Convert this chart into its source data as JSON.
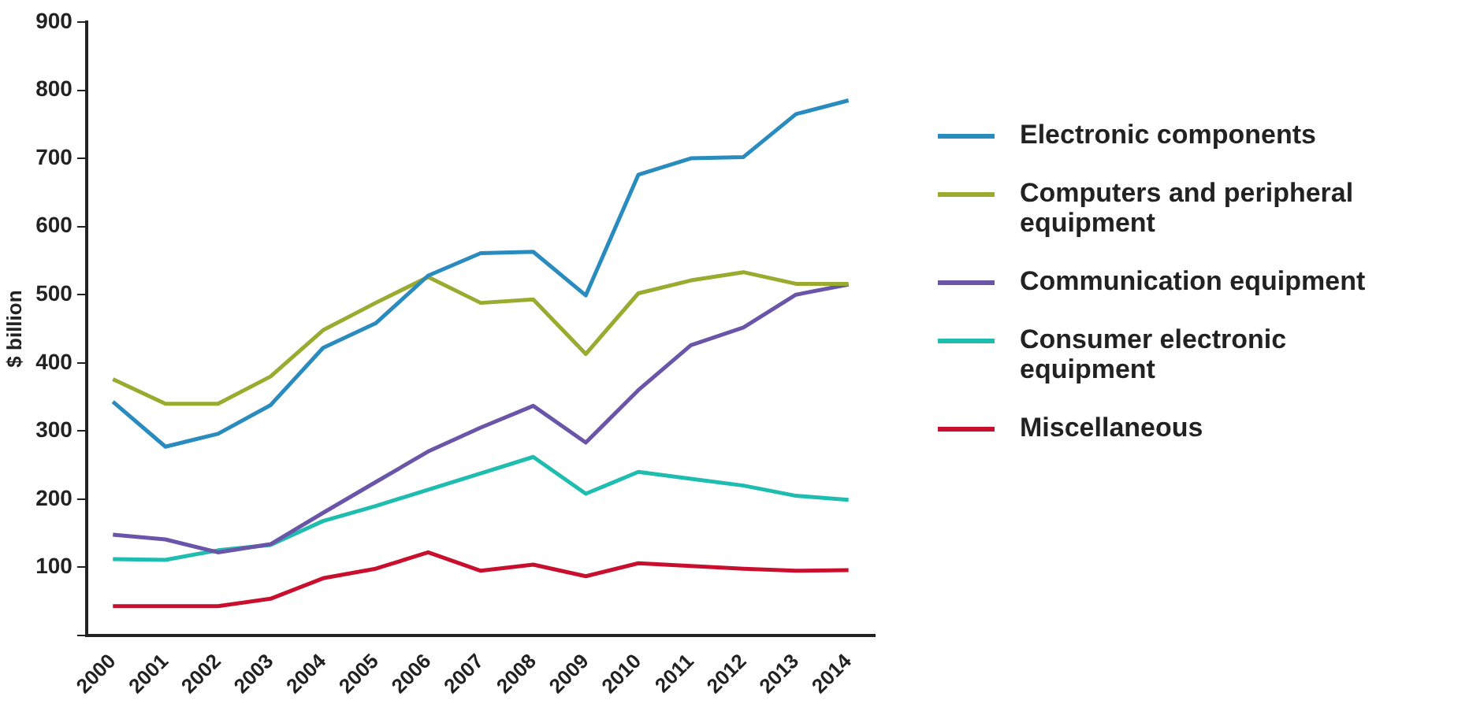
{
  "chart_data": {
    "type": "line",
    "ylabel": "$ billion",
    "categories": [
      "2000",
      "2001",
      "2002",
      "2003",
      "2004",
      "2005",
      "2006",
      "2007",
      "2008",
      "2009",
      "2010",
      "2011",
      "2012",
      "2013",
      "2014"
    ],
    "series": [
      {
        "name": "Electronic components",
        "color": "#2a8bbf",
        "values": [
          343,
          277,
          296,
          338,
          422,
          458,
          528,
          561,
          563,
          499,
          676,
          700,
          702,
          765,
          785
        ]
      },
      {
        "name": "Computers and peripheral equipment",
        "color": "#9aab2f",
        "values": [
          376,
          340,
          340,
          380,
          448,
          488,
          526,
          488,
          493,
          413,
          502,
          521,
          533,
          516,
          516
        ]
      },
      {
        "name": "Communication equipment",
        "color": "#6a55a8",
        "values": [
          148,
          141,
          122,
          134,
          180,
          225,
          270,
          305,
          337,
          283,
          360,
          426,
          452,
          500,
          515
        ]
      },
      {
        "name": "Consumer electronic equipment",
        "color": "#1fbcb0",
        "values": [
          112,
          111,
          125,
          133,
          168,
          190,
          214,
          238,
          262,
          208,
          240,
          230,
          220,
          205,
          199
        ]
      },
      {
        "name": "Miscellaneous",
        "color": "#c8102e",
        "values": [
          43,
          43,
          43,
          54,
          84,
          98,
          122,
          95,
          104,
          87,
          106,
          102,
          98,
          95,
          96
        ]
      }
    ],
    "ylim": [
      0,
      900
    ],
    "yticks": [
      {
        "value": 0,
        "label": null
      },
      100,
      200,
      300,
      400,
      500,
      600,
      700,
      800,
      900
    ],
    "grid": false,
    "legend": "right",
    "marker": "none",
    "line_style": "solid"
  }
}
